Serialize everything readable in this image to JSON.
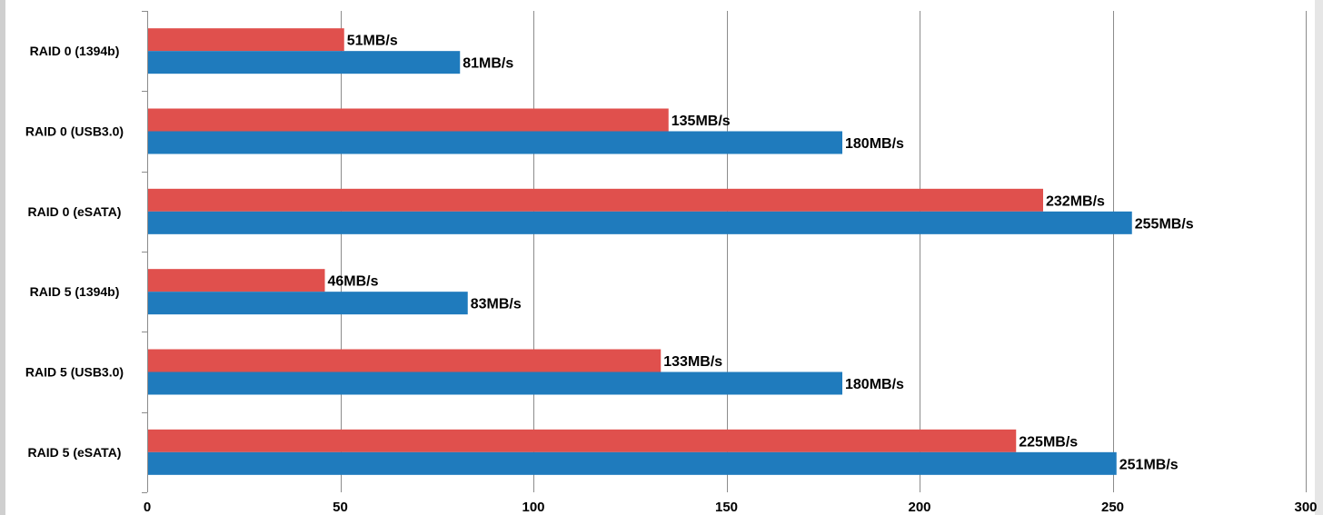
{
  "chart_data": {
    "type": "bar",
    "orientation": "horizontal",
    "categories": [
      "RAID 0 (1394b)",
      "RAID 0 (USB3.0)",
      "RAID 0 (eSATA)",
      "RAID 5 (1394b)",
      "RAID 5 (USB3.0)",
      "RAID 5 (eSATA)"
    ],
    "series": [
      {
        "color": "#e0504d",
        "values": [
          51,
          135,
          232,
          46,
          133,
          225
        ],
        "labels": [
          "51MB/s",
          "135MB/s",
          "232MB/s",
          "46MB/s",
          "133MB/s",
          "225MB/s"
        ]
      },
      {
        "color": "#1f7bbd",
        "values": [
          81,
          180,
          255,
          83,
          180,
          251
        ],
        "labels": [
          "81MB/s",
          "180MB/s",
          "255MB/s",
          "83MB/s",
          "180MB/s",
          "251MB/s"
        ]
      }
    ],
    "xlim": [
      0,
      300
    ],
    "xticks": [
      0,
      50,
      100,
      150,
      200,
      250,
      300
    ],
    "xtick_labels": [
      "0",
      "50",
      "100",
      "150",
      "200",
      "250",
      "300"
    ],
    "grid": "vertical",
    "legend": "none",
    "gridline_color": "#8c8c8c",
    "axis_color": "#8c8c8c",
    "side_border_color": "#cfcfcf"
  }
}
